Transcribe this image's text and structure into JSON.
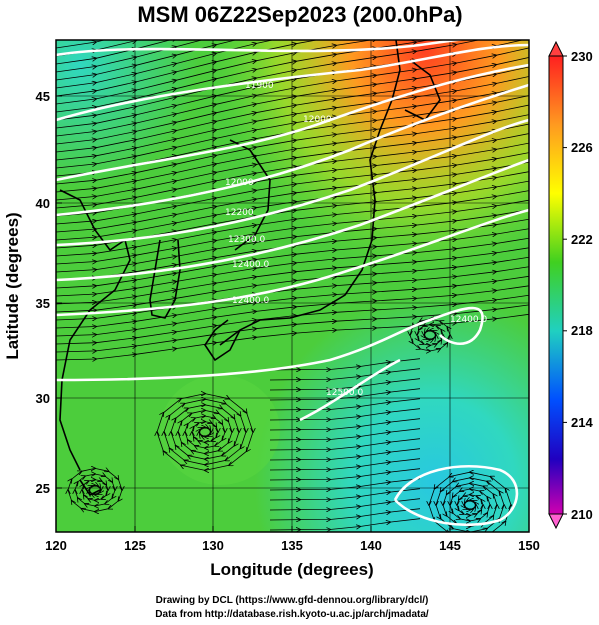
{
  "title": "MSM 06Z22Sep2023 (200.0hPa)",
  "x_axis": {
    "label": "Longitude (degrees)",
    "ticks": [
      "120",
      "125",
      "130",
      "135",
      "140",
      "145",
      "150"
    ]
  },
  "y_axis": {
    "label": "Latitude  (degrees)",
    "ticks": [
      "25",
      "30",
      "35",
      "40",
      "45"
    ]
  },
  "colorbar": {
    "ticks": [
      "230",
      "226",
      "222",
      "218",
      "214",
      "210"
    ]
  },
  "contour_labels": [
    "11900",
    "12000",
    "12000",
    "12200",
    "12300.0",
    "12400.0",
    "12400.0",
    "12400.0",
    "12500.0"
  ],
  "credits": {
    "line1": "Drawing by DCL (https://www.gfd-dennou.org/library/dcl/)",
    "line2": "Data from http://database.rish.kyoto-u.ac.jp/arch/jmadata/"
  },
  "colors": {
    "low": "#cc00aa",
    "mid_low": "#0050ff",
    "mid": "#20d0c0",
    "mid_high": "#30d030",
    "high": "#ffff00",
    "top": "#ff2020"
  }
}
